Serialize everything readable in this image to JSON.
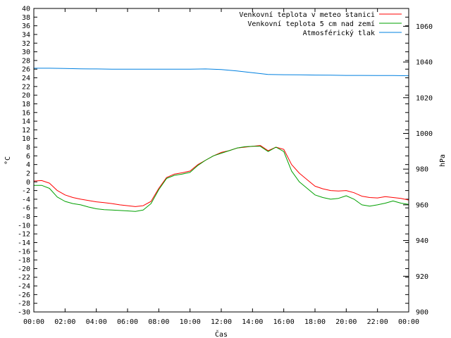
{
  "chart_data": {
    "type": "line",
    "title": "",
    "xlabel": "Čas",
    "ylabel": "°C",
    "y2label": "hPa",
    "x_ticks": [
      "00:00",
      "02:00",
      "04:00",
      "06:00",
      "08:00",
      "10:00",
      "12:00",
      "14:00",
      "16:00",
      "18:00",
      "20:00",
      "22:00",
      "00:00"
    ],
    "x_range_hours": [
      0,
      24
    ],
    "ylim": [
      -30,
      40
    ],
    "y_tick_step": 2,
    "y2lim": [
      900,
      1070
    ],
    "y2_ticks": [
      900,
      920,
      940,
      960,
      980,
      1000,
      1020,
      1040,
      1060
    ],
    "grid": false,
    "legend_position": "top-right",
    "series": [
      {
        "name": "Venkovní teplota v meteo stanici",
        "axis": "left",
        "color": "#ff0000",
        "x": [
          0,
          0.5,
          1,
          1.5,
          2,
          2.5,
          3,
          3.5,
          4,
          4.5,
          5,
          5.5,
          6,
          6.5,
          7,
          7.5,
          8,
          8.5,
          9,
          9.5,
          10,
          10.5,
          11,
          11.5,
          12,
          12.5,
          13,
          13.5,
          14,
          14.5,
          15,
          15.5,
          16,
          16.5,
          17,
          17.5,
          18,
          18.5,
          19,
          19.5,
          20,
          20.5,
          21,
          21.5,
          22,
          22.5,
          23,
          23.5,
          24
        ],
        "values": [
          0.2,
          0.3,
          -0.3,
          -2,
          -3,
          -3.6,
          -4,
          -4.3,
          -4.6,
          -4.8,
          -5,
          -5.3,
          -5.5,
          -5.7,
          -5.5,
          -4.5,
          -1.5,
          1,
          1.8,
          2.1,
          2.5,
          4,
          5,
          6,
          6.8,
          7.2,
          7.8,
          8,
          8.2,
          8.4,
          7.2,
          8,
          7.5,
          4,
          2,
          0.5,
          -1,
          -1.6,
          -2,
          -2.1,
          -2,
          -2.5,
          -3.3,
          -3.6,
          -3.7,
          -3.4,
          -3.6,
          -3.8,
          -4.2
        ]
      },
      {
        "name": "Venkovní teplota 5 cm nad zemí",
        "axis": "left",
        "color": "#00a000",
        "x": [
          0,
          0.5,
          1,
          1.5,
          2,
          2.5,
          3,
          3.5,
          4,
          4.5,
          5,
          5.5,
          6,
          6.5,
          7,
          7.5,
          8,
          8.5,
          9,
          9.5,
          10,
          10.5,
          11,
          11.5,
          12,
          12.5,
          13,
          13.5,
          14,
          14.5,
          15,
          15.5,
          16,
          16.5,
          17,
          17.5,
          18,
          18.5,
          19,
          19.5,
          20,
          20.5,
          21,
          21.5,
          22,
          22.5,
          23,
          23.5,
          24
        ],
        "values": [
          -0.8,
          -0.8,
          -1.5,
          -3.5,
          -4.5,
          -5,
          -5.3,
          -5.8,
          -6.2,
          -6.4,
          -6.5,
          -6.6,
          -6.7,
          -6.8,
          -6.5,
          -5,
          -1.8,
          0.8,
          1.5,
          1.8,
          2.2,
          3.8,
          5,
          6,
          6.6,
          7.2,
          7.8,
          8.1,
          8.2,
          8.2,
          7,
          8,
          7,
          2.5,
          0,
          -1.5,
          -3,
          -3.6,
          -4,
          -3.8,
          -3.2,
          -4,
          -5.3,
          -5.6,
          -5.3,
          -4.9,
          -4.4,
          -4.9,
          -5.2
        ]
      },
      {
        "name": "Atmosférický tlak",
        "axis": "right",
        "color": "#0080e0",
        "x": [
          0,
          1,
          2,
          3,
          4,
          5,
          6,
          7,
          8,
          9,
          10,
          11,
          12,
          13,
          14,
          15,
          16,
          17,
          18,
          19,
          20,
          21,
          22,
          23,
          24
        ],
        "values": [
          1036.5,
          1036.5,
          1036.4,
          1036.2,
          1036.1,
          1036,
          1036,
          1036,
          1036,
          1036,
          1036,
          1036.1,
          1035.8,
          1035,
          1034,
          1033,
          1032.9,
          1032.8,
          1032.7,
          1032.6,
          1032.5,
          1032.5,
          1032.4,
          1032.4,
          1032.3
        ]
      }
    ]
  }
}
